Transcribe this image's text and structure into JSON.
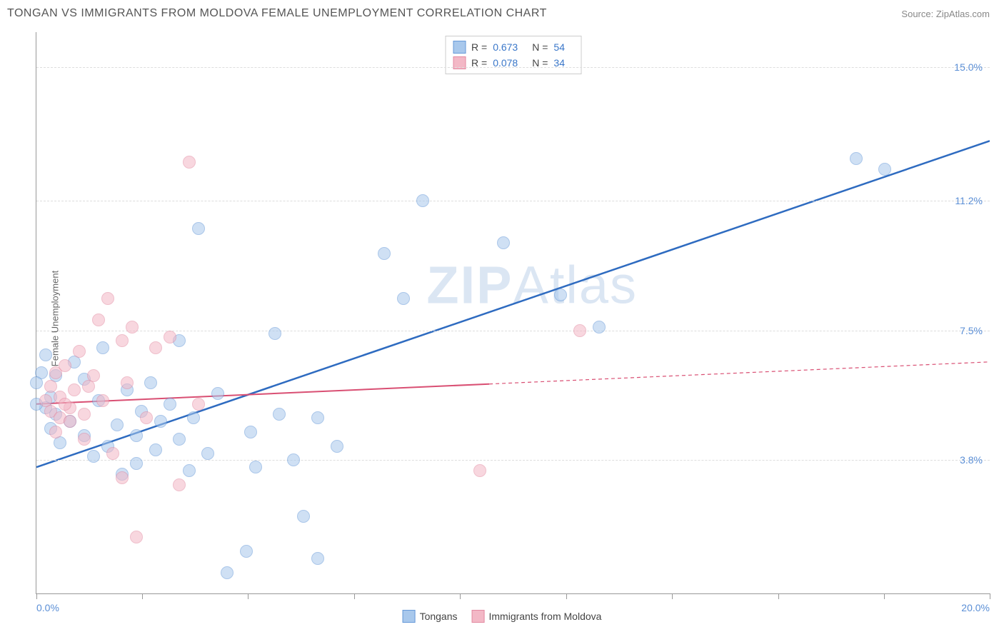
{
  "title": "TONGAN VS IMMIGRANTS FROM MOLDOVA FEMALE UNEMPLOYMENT CORRELATION CHART",
  "source_label": "Source:",
  "source_name": "ZipAtlas.com",
  "y_axis_label": "Female Unemployment",
  "watermark_bold": "ZIP",
  "watermark_rest": "Atlas",
  "chart": {
    "type": "scatter",
    "xlim": [
      0,
      20
    ],
    "ylim": [
      0,
      16
    ],
    "x_min_label": "0.0%",
    "x_max_label": "20.0%",
    "y_ticks": [
      {
        "v": 3.8,
        "label": "3.8%"
      },
      {
        "v": 7.5,
        "label": "7.5%"
      },
      {
        "v": 11.2,
        "label": "11.2%"
      },
      {
        "v": 15.0,
        "label": "15.0%"
      }
    ],
    "x_tick_positions": [
      0,
      2.22,
      4.44,
      6.67,
      8.89,
      11.11,
      13.33,
      15.56,
      17.78,
      20
    ],
    "grid_color": "#dddddd",
    "background_color": "#ffffff",
    "point_radius": 9,
    "series": [
      {
        "name": "Tongans",
        "fill": "#a8c8ec",
        "stroke": "#6699d8",
        "trend_color": "#2e6bc0",
        "trend_width": 2.5,
        "trend_y_at_xmin": 3.6,
        "trend_y_at_xmax": 12.9,
        "solid_until_x": 20,
        "R_label": "R =",
        "R": "0.673",
        "N_label": "N =",
        "N": "54",
        "points": [
          [
            0.1,
            6.3
          ],
          [
            0.2,
            6.8
          ],
          [
            0.2,
            5.3
          ],
          [
            0.3,
            5.6
          ],
          [
            0.4,
            6.2
          ],
          [
            0.4,
            5.1
          ],
          [
            0.5,
            4.3
          ],
          [
            0.7,
            4.9
          ],
          [
            0.8,
            6.6
          ],
          [
            1.0,
            6.1
          ],
          [
            1.0,
            4.5
          ],
          [
            1.2,
            3.9
          ],
          [
            1.3,
            5.5
          ],
          [
            1.4,
            7.0
          ],
          [
            1.5,
            4.2
          ],
          [
            1.7,
            4.8
          ],
          [
            1.9,
            5.8
          ],
          [
            2.1,
            3.7
          ],
          [
            2.1,
            4.5
          ],
          [
            2.4,
            6.0
          ],
          [
            2.5,
            4.1
          ],
          [
            2.6,
            4.9
          ],
          [
            2.8,
            5.4
          ],
          [
            3.0,
            4.4
          ],
          [
            3.0,
            7.2
          ],
          [
            3.2,
            3.5
          ],
          [
            3.3,
            5.0
          ],
          [
            3.4,
            10.4
          ],
          [
            3.6,
            4.0
          ],
          [
            3.8,
            5.7
          ],
          [
            4.0,
            0.6
          ],
          [
            4.4,
            1.2
          ],
          [
            4.5,
            4.6
          ],
          [
            4.6,
            3.6
          ],
          [
            5.0,
            7.4
          ],
          [
            5.1,
            5.1
          ],
          [
            5.4,
            3.8
          ],
          [
            5.6,
            2.2
          ],
          [
            5.9,
            5.0
          ],
          [
            5.9,
            1.0
          ],
          [
            6.3,
            4.2
          ],
          [
            7.3,
            9.7
          ],
          [
            7.7,
            8.4
          ],
          [
            8.1,
            11.2
          ],
          [
            9.8,
            10.0
          ],
          [
            11.0,
            8.5
          ],
          [
            11.8,
            7.6
          ],
          [
            17.2,
            12.4
          ],
          [
            17.8,
            12.1
          ],
          [
            0.0,
            5.4
          ],
          [
            0.0,
            6.0
          ],
          [
            0.3,
            4.7
          ],
          [
            1.8,
            3.4
          ],
          [
            2.2,
            5.2
          ]
        ]
      },
      {
        "name": "Immigrants from Moldova",
        "fill": "#f3b8c6",
        "stroke": "#e389a1",
        "trend_color": "#d94f73",
        "trend_width": 2,
        "trend_y_at_xmin": 5.4,
        "trend_y_at_xmax": 6.6,
        "solid_until_x": 9.5,
        "R_label": "R =",
        "R": "0.078",
        "N_label": "N =",
        "N": "34",
        "points": [
          [
            0.2,
            5.5
          ],
          [
            0.3,
            5.9
          ],
          [
            0.3,
            5.2
          ],
          [
            0.4,
            6.3
          ],
          [
            0.5,
            5.0
          ],
          [
            0.5,
            5.6
          ],
          [
            0.6,
            6.5
          ],
          [
            0.7,
            4.9
          ],
          [
            0.7,
            5.3
          ],
          [
            0.8,
            5.8
          ],
          [
            0.9,
            6.9
          ],
          [
            1.0,
            5.1
          ],
          [
            1.0,
            4.4
          ],
          [
            1.2,
            6.2
          ],
          [
            1.3,
            7.8
          ],
          [
            1.4,
            5.5
          ],
          [
            1.5,
            8.4
          ],
          [
            1.6,
            4.0
          ],
          [
            1.8,
            7.2
          ],
          [
            1.8,
            3.3
          ],
          [
            2.0,
            7.6
          ],
          [
            2.1,
            1.6
          ],
          [
            2.3,
            5.0
          ],
          [
            2.5,
            7.0
          ],
          [
            2.8,
            7.3
          ],
          [
            3.0,
            3.1
          ],
          [
            3.2,
            12.3
          ],
          [
            3.4,
            5.4
          ],
          [
            0.4,
            4.6
          ],
          [
            0.6,
            5.4
          ],
          [
            1.1,
            5.9
          ],
          [
            9.3,
            3.5
          ],
          [
            11.4,
            7.5
          ],
          [
            1.9,
            6.0
          ]
        ]
      }
    ]
  },
  "bottom_legend": [
    {
      "label": "Tongans",
      "fill": "#a8c8ec",
      "stroke": "#6699d8"
    },
    {
      "label": "Immigrants from Moldova",
      "fill": "#f3b8c6",
      "stroke": "#e389a1"
    }
  ]
}
